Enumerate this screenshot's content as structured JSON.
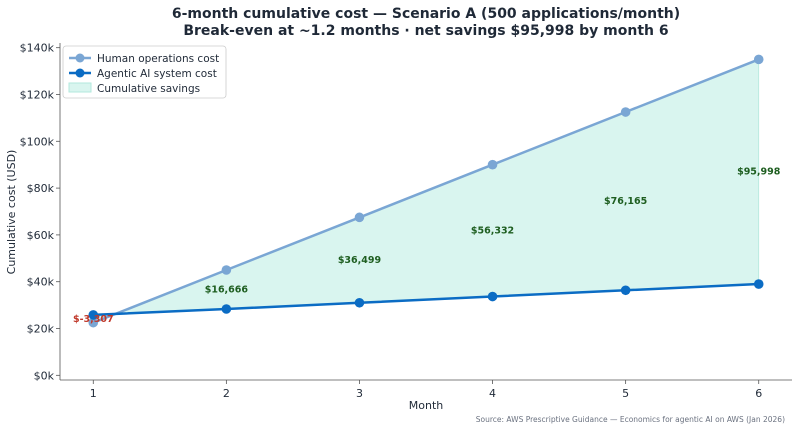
{
  "chart_data": {
    "type": "line",
    "title": "6-month cumulative cost — Scenario A (500 applications/month)",
    "subtitle": "Break-even at ~1.2 months · net savings $95,998 by month 6",
    "xlabel": "Month",
    "ylabel": "Cumulative cost (USD)",
    "x": [
      1,
      2,
      3,
      4,
      5,
      6
    ],
    "xlim": [
      0.75,
      6.25
    ],
    "ylim": [
      -2000,
      142000
    ],
    "yticks": [
      0,
      20000,
      40000,
      60000,
      80000,
      100000,
      120000,
      140000
    ],
    "ytick_labels": [
      "$0k",
      "$20k",
      "$40k",
      "$60k",
      "$80k",
      "$100k",
      "$120k",
      "$140k"
    ],
    "series": [
      {
        "name": "Human operations cost",
        "values": [
          22500,
          45000,
          67500,
          90000,
          112500,
          135000
        ],
        "color": "#7aa6d4"
      },
      {
        "name": "Agentic AI system cost",
        "values": [
          25807,
          28334,
          31001,
          33668,
          36335,
          39002
        ],
        "color": "#0b6cc4"
      }
    ],
    "fill_between": {
      "name": "Cumulative savings",
      "color": "#d9f5ef",
      "edge": "#b2e8dc"
    },
    "savings_labels": [
      {
        "x": 1,
        "text": "$-3,307",
        "color": "#c0392b"
      },
      {
        "x": 2,
        "text": "$16,666",
        "color": "#1e5e20"
      },
      {
        "x": 3,
        "text": "$36,499",
        "color": "#1e5e20"
      },
      {
        "x": 4,
        "text": "$56,332",
        "color": "#1e5e20"
      },
      {
        "x": 5,
        "text": "$76,165",
        "color": "#1e5e20"
      },
      {
        "x": 6,
        "text": "$95,998",
        "color": "#1e5e20"
      }
    ],
    "legend_position": "top-left",
    "grid": false,
    "source": "Source: AWS Prescriptive Guidance — Economics for agentic AI on AWS (Jan 2026)"
  }
}
